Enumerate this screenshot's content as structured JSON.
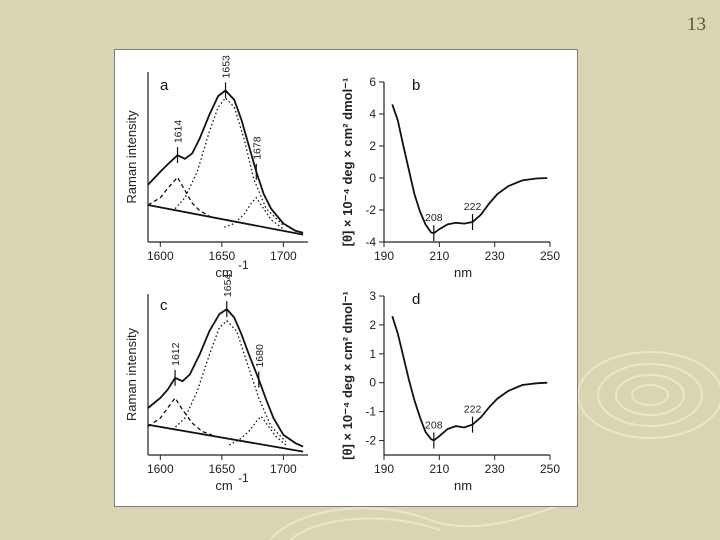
{
  "slide": {
    "page_number": "13",
    "background": "#d9d5b2"
  },
  "chart_data": [
    {
      "panel": "a",
      "type": "line",
      "xlabel": "cm",
      "xlabel_sup": "-1",
      "ylabel": "Raman intensity",
      "xlim": [
        1590,
        1720
      ],
      "xticks": [
        "1600",
        "1650",
        "1700"
      ],
      "peak_labels": [
        {
          "label": "1614",
          "x": 1614
        },
        {
          "label": "1653",
          "x": 1653
        },
        {
          "label": "1678",
          "x": 1678
        }
      ],
      "series": [
        {
          "style": "solid",
          "x": [
            1590,
            1600,
            1606,
            1614,
            1620,
            1626,
            1632,
            1640,
            1647,
            1653,
            1660,
            1666,
            1672,
            1678,
            1684,
            1690,
            1700,
            1710,
            1716
          ],
          "y": [
            0.31,
            0.38,
            0.42,
            0.47,
            0.45,
            0.48,
            0.56,
            0.69,
            0.79,
            0.82,
            0.77,
            0.66,
            0.52,
            0.38,
            0.26,
            0.18,
            0.1,
            0.06,
            0.05
          ]
        },
        {
          "style": "dashed",
          "x": [
            1590,
            1600,
            1606,
            1614,
            1620,
            1626,
            1632,
            1640
          ],
          "y": [
            0.2,
            0.24,
            0.29,
            0.35,
            0.28,
            0.21,
            0.17,
            0.14
          ]
        },
        {
          "style": "dotted",
          "x": [
            1612,
            1620,
            1630,
            1640,
            1647,
            1653,
            1660,
            1668,
            1676,
            1686,
            1700
          ],
          "y": [
            0.18,
            0.24,
            0.38,
            0.6,
            0.73,
            0.78,
            0.73,
            0.56,
            0.34,
            0.18,
            0.09
          ]
        },
        {
          "style": "dotted",
          "x": [
            1652,
            1660,
            1668,
            1674,
            1678,
            1684,
            1690,
            1700
          ],
          "y": [
            0.08,
            0.1,
            0.15,
            0.21,
            0.24,
            0.18,
            0.12,
            0.07
          ]
        },
        {
          "style": "solid",
          "x": [
            1590,
            1716
          ],
          "y": [
            0.2,
            0.04
          ]
        }
      ]
    },
    {
      "panel": "b",
      "type": "line",
      "xlabel": "nm",
      "ylabel": "[θ] × 10⁻⁴ deg × cm² dmol⁻¹",
      "xlim": [
        190,
        250
      ],
      "ylim": [
        -4,
        6
      ],
      "xticks": [
        "190",
        "210",
        "230",
        "250"
      ],
      "yticks": [
        "-4",
        "-2",
        "0",
        "2",
        "4",
        "6"
      ],
      "peak_labels": [
        {
          "label": "208",
          "x": 208
        },
        {
          "label": "222",
          "x": 222
        }
      ],
      "series": [
        {
          "style": "solid",
          "x": [
            193,
            195,
            197,
            199,
            201,
            203,
            205,
            207,
            208,
            210,
            213,
            216,
            219,
            222,
            225,
            228,
            231,
            235,
            240,
            245,
            249
          ],
          "y": [
            4.6,
            3.6,
            2.0,
            0.5,
            -1.0,
            -2.1,
            -2.9,
            -3.4,
            -3.45,
            -3.2,
            -2.9,
            -2.8,
            -2.85,
            -2.75,
            -2.3,
            -1.6,
            -1.0,
            -0.5,
            -0.15,
            -0.03,
            0
          ]
        }
      ]
    },
    {
      "panel": "c",
      "type": "line",
      "xlabel": "cm",
      "xlabel_sup": "-1",
      "ylabel": "Raman intensity",
      "xlim": [
        1590,
        1720
      ],
      "xticks": [
        "1600",
        "1650",
        "1700"
      ],
      "peak_labels": [
        {
          "label": "1612",
          "x": 1612
        },
        {
          "label": "1654",
          "x": 1654
        },
        {
          "label": "1680",
          "x": 1680
        }
      ],
      "series": [
        {
          "style": "solid",
          "x": [
            1590,
            1600,
            1606,
            1612,
            1618,
            1624,
            1632,
            1640,
            1648,
            1654,
            1660,
            1666,
            1672,
            1680,
            1686,
            1692,
            1700,
            1710,
            1716
          ],
          "y": [
            0.28,
            0.34,
            0.39,
            0.46,
            0.44,
            0.48,
            0.6,
            0.74,
            0.84,
            0.87,
            0.82,
            0.72,
            0.6,
            0.45,
            0.33,
            0.22,
            0.12,
            0.07,
            0.05
          ]
        },
        {
          "style": "dashed",
          "x": [
            1590,
            1600,
            1606,
            1612,
            1618,
            1626,
            1634,
            1642
          ],
          "y": [
            0.17,
            0.22,
            0.28,
            0.34,
            0.27,
            0.19,
            0.14,
            0.12
          ]
        },
        {
          "style": "dotted",
          "x": [
            1610,
            1620,
            1630,
            1640,
            1648,
            1654,
            1662,
            1670,
            1680,
            1690,
            1702
          ],
          "y": [
            0.15,
            0.22,
            0.38,
            0.6,
            0.76,
            0.8,
            0.74,
            0.56,
            0.34,
            0.17,
            0.08
          ]
        },
        {
          "style": "dotted",
          "x": [
            1656,
            1664,
            1672,
            1678,
            1682,
            1688,
            1694,
            1702
          ],
          "y": [
            0.06,
            0.09,
            0.14,
            0.2,
            0.23,
            0.17,
            0.11,
            0.06
          ]
        },
        {
          "style": "solid",
          "x": [
            1590,
            1716
          ],
          "y": [
            0.18,
            0.02
          ]
        }
      ]
    },
    {
      "panel": "d",
      "type": "line",
      "xlabel": "nm",
      "ylabel": "[θ] × 10⁻⁴ deg × cm² dmol⁻¹",
      "xlim": [
        190,
        250
      ],
      "ylim": [
        -2.5,
        3
      ],
      "xticks": [
        "190",
        "210",
        "230",
        "250"
      ],
      "yticks": [
        "-2",
        "-1",
        "0",
        "1",
        "2",
        "3"
      ],
      "peak_labels": [
        {
          "label": "208",
          "x": 208
        },
        {
          "label": "222",
          "x": 222
        }
      ],
      "series": [
        {
          "style": "solid",
          "x": [
            193,
            195,
            197,
            199,
            201,
            203,
            205,
            207,
            208,
            210,
            213,
            216,
            219,
            222,
            225,
            228,
            231,
            235,
            240,
            245,
            249
          ],
          "y": [
            2.3,
            1.7,
            0.9,
            0.1,
            -0.6,
            -1.2,
            -1.7,
            -1.95,
            -2.0,
            -1.85,
            -1.6,
            -1.5,
            -1.55,
            -1.45,
            -1.2,
            -0.85,
            -0.55,
            -0.28,
            -0.08,
            -0.02,
            0
          ]
        }
      ]
    }
  ]
}
